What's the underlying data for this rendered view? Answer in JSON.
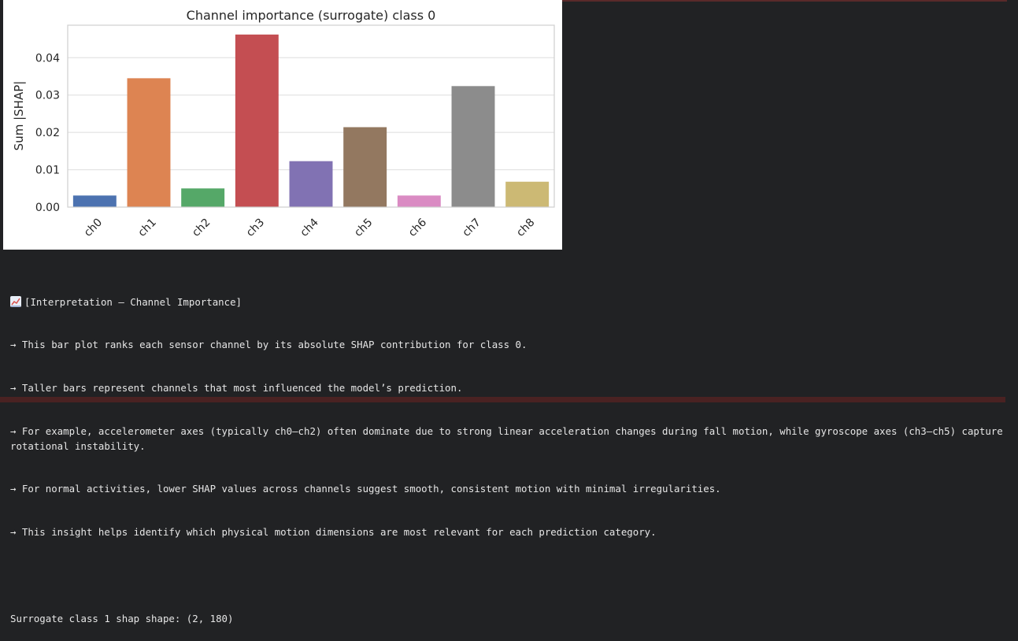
{
  "chart_data": {
    "type": "bar",
    "title": "Channel importance (surrogate) class 0",
    "xlabel": "",
    "ylabel": "Sum |SHAP|",
    "categories": [
      "ch0",
      "ch1",
      "ch2",
      "ch3",
      "ch4",
      "ch5",
      "ch6",
      "ch7",
      "ch8"
    ],
    "values": [
      0.0031,
      0.0345,
      0.005,
      0.0462,
      0.0123,
      0.0214,
      0.0031,
      0.0324,
      0.0068
    ],
    "colors": [
      "#4c72b0",
      "#dd8452",
      "#55a868",
      "#c44e52",
      "#8172b3",
      "#937860",
      "#da8bc3",
      "#8c8c8c",
      "#ccb974"
    ],
    "yticks": [
      "0.00",
      "0.01",
      "0.02",
      "0.03",
      "0.04"
    ],
    "ylim": [
      0,
      0.0487
    ],
    "grid": true
  },
  "output": {
    "heading_icon": "chart-increasing-icon",
    "heading": "[Interpretation – Channel Importance]",
    "lines": [
      "→ This bar plot ranks each sensor channel by its absolute SHAP contribution for class 0.",
      "→ Taller bars represent channels that most influenced the model’s prediction.",
      "→ For example, accelerometer axes (typically ch0–ch2) often dominate due to strong linear acceleration changes during fall motion, while gyroscope axes (ch3–ch5) capture rotational instability.",
      "→ For normal activities, lower SHAP values across channels suggest smooth, consistent motion with minimal irregularities.",
      "→ This insight helps identify which physical motion dimensions are most relevant for each prediction category."
    ],
    "shape_line": "Surrogate class 1 shap shape: (2, 180)"
  }
}
